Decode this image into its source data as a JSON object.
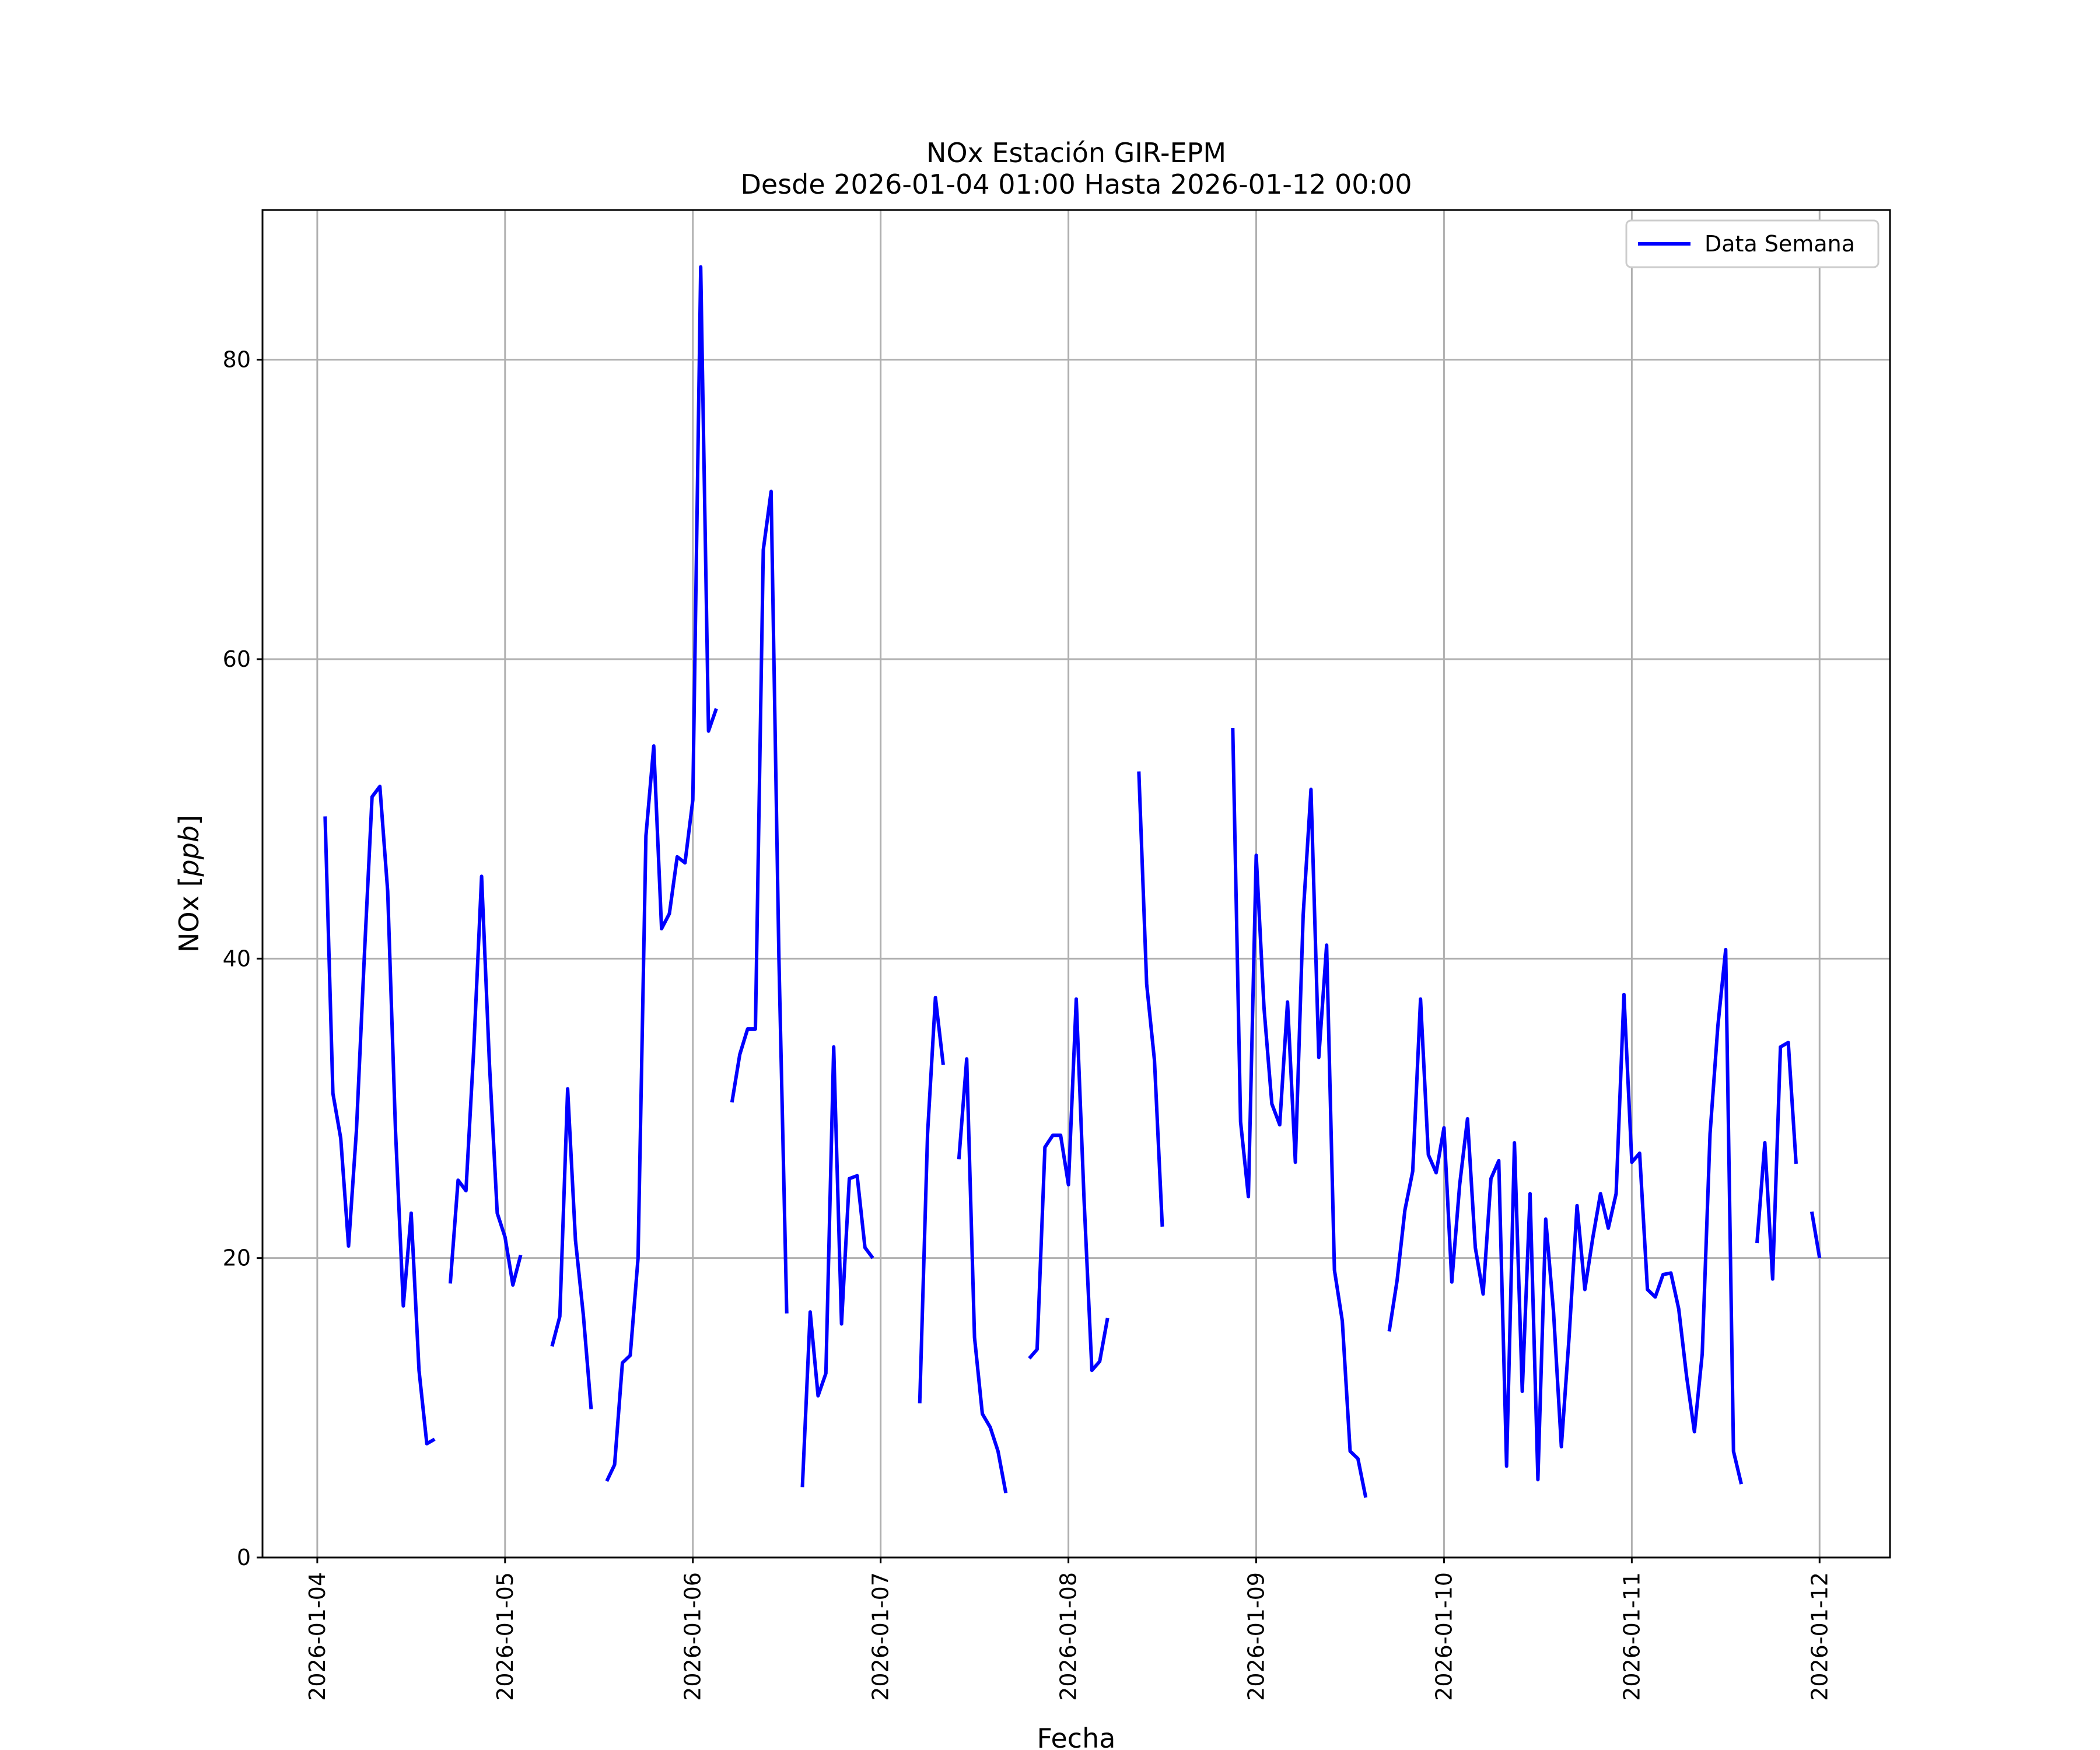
{
  "chart_data": {
    "type": "line",
    "title": "NOx Estación GIR-EPM",
    "subtitle": "Desde 2026-01-04 01:00 Hasta 2026-01-12 00:00",
    "xlabel": "Fecha",
    "ylabel": "NOx [ppb]",
    "xlim": [
      "2026-01-03 17:00",
      "2026-01-12 09:00"
    ],
    "ylim": [
      0,
      90
    ],
    "x_ticks": [
      "2026-01-04",
      "2026-01-05",
      "2026-01-06",
      "2026-01-07",
      "2026-01-08",
      "2026-01-09",
      "2026-01-10",
      "2026-01-11",
      "2026-01-12"
    ],
    "y_ticks": [
      0,
      20,
      40,
      60,
      80
    ],
    "grid": true,
    "legend": {
      "position": "top-right",
      "entries": [
        "Data Semana"
      ]
    },
    "colors": {
      "series": "#0000ff",
      "grid": "#b0b0b0"
    },
    "series": [
      {
        "name": "Data Semana",
        "segments": [
          [
            [
              "2026-01-04 01:00",
              49.5
            ],
            [
              "2026-01-04 02:00",
              31
            ],
            [
              "2026-01-04 03:00",
              28
            ],
            [
              "2026-01-04 04:00",
              20.8
            ],
            [
              "2026-01-04 05:00",
              28.5
            ],
            [
              "2026-01-04 06:00",
              40
            ],
            [
              "2026-01-04 07:00",
              50.8
            ],
            [
              "2026-01-04 08:00",
              51.5
            ],
            [
              "2026-01-04 09:00",
              44.5
            ],
            [
              "2026-01-04 10:00",
              28.5
            ],
            [
              "2026-01-04 11:00",
              16.8
            ],
            [
              "2026-01-04 12:00",
              23
            ],
            [
              "2026-01-04 13:00",
              12.5
            ],
            [
              "2026-01-04 14:00",
              7.6
            ],
            [
              "2026-01-04 15:00",
              7.9
            ]
          ],
          [
            [
              "2026-01-04 17:00",
              18.3
            ],
            [
              "2026-01-04 18:00",
              25.2
            ],
            [
              "2026-01-04 19:00",
              24.5
            ],
            [
              "2026-01-04 20:00",
              34
            ],
            [
              "2026-01-04 21:00",
              45.5
            ],
            [
              "2026-01-04 22:00",
              33
            ],
            [
              "2026-01-04 23:00",
              23
            ],
            [
              "2026-01-05 00:00",
              21.4
            ],
            [
              "2026-01-05 01:00",
              18.2
            ],
            [
              "2026-01-05 02:00",
              20.2
            ]
          ],
          [
            [
              "2026-01-05 06:00",
              14.1
            ],
            [
              "2026-01-05 07:00",
              16.1
            ],
            [
              "2026-01-05 08:00",
              31.3
            ],
            [
              "2026-01-05 09:00",
              21.2
            ],
            [
              "2026-01-05 10:00",
              16.2
            ],
            [
              "2026-01-05 11:00",
              9.9
            ]
          ],
          [
            [
              "2026-01-05 13:00",
              5.1
            ],
            [
              "2026-01-05 14:00",
              6.2
            ],
            [
              "2026-01-05 15:00",
              13
            ],
            [
              "2026-01-05 16:00",
              13.5
            ],
            [
              "2026-01-05 17:00",
              20
            ],
            [
              "2026-01-05 18:00",
              48.2
            ],
            [
              "2026-01-05 19:00",
              54.2
            ],
            [
              "2026-01-05 20:00",
              42
            ],
            [
              "2026-01-05 21:00",
              43
            ],
            [
              "2026-01-05 22:00",
              46.8
            ],
            [
              "2026-01-05 23:00",
              46.4
            ],
            [
              "2026-01-06 00:00",
              50.6
            ],
            [
              "2026-01-06 01:00",
              86.2
            ],
            [
              "2026-01-06 02:00",
              55.2
            ],
            [
              "2026-01-06 03:00",
              56.7
            ]
          ],
          [
            [
              "2026-01-06 05:00",
              30.4
            ],
            [
              "2026-01-06 06:00",
              33.6
            ],
            [
              "2026-01-06 07:00",
              35.3
            ],
            [
              "2026-01-06 08:00",
              35.3
            ],
            [
              "2026-01-06 09:00",
              67.3
            ],
            [
              "2026-01-06 10:00",
              71.2
            ],
            [
              "2026-01-06 11:00",
              40
            ],
            [
              "2026-01-06 12:00",
              16.3
            ]
          ],
          [
            [
              "2026-01-06 14:00",
              4.7
            ],
            [
              "2026-01-06 15:00",
              16.4
            ],
            [
              "2026-01-06 16:00",
              10.8
            ],
            [
              "2026-01-06 17:00",
              12.3
            ],
            [
              "2026-01-06 18:00",
              34.1
            ],
            [
              "2026-01-06 19:00",
              15.6
            ],
            [
              "2026-01-06 20:00",
              25.3
            ],
            [
              "2026-01-06 21:00",
              25.5
            ],
            [
              "2026-01-06 22:00",
              20.7
            ],
            [
              "2026-01-06 23:00",
              20
            ]
          ],
          [
            [
              "2026-01-07 05:00",
              10.3
            ],
            [
              "2026-01-07 06:00",
              28.3
            ],
            [
              "2026-01-07 07:00",
              37.4
            ],
            [
              "2026-01-07 08:00",
              32.9
            ]
          ],
          [
            [
              "2026-01-07 10:00",
              26.6
            ],
            [
              "2026-01-07 11:00",
              33.3
            ],
            [
              "2026-01-07 12:00",
              14.7
            ],
            [
              "2026-01-07 13:00",
              9.6
            ],
            [
              "2026-01-07 14:00",
              8.7
            ],
            [
              "2026-01-07 15:00",
              7.1
            ],
            [
              "2026-01-07 16:00",
              4.3
            ]
          ],
          [
            [
              "2026-01-07 19:00",
              13.3
            ],
            [
              "2026-01-07 20:00",
              13.9
            ],
            [
              "2026-01-07 21:00",
              27.4
            ],
            [
              "2026-01-07 22:00",
              28.2
            ],
            [
              "2026-01-07 23:00",
              28.2
            ],
            [
              "2026-01-08 00:00",
              24.9
            ],
            [
              "2026-01-08 01:00",
              37.3
            ],
            [
              "2026-01-08 02:00",
              23.9
            ],
            [
              "2026-01-08 03:00",
              12.5
            ],
            [
              "2026-01-08 04:00",
              13.1
            ],
            [
              "2026-01-08 05:00",
              16
            ]
          ],
          [
            [
              "2026-01-08 09:00",
              52.5
            ],
            [
              "2026-01-08 10:00",
              38.3
            ],
            [
              "2026-01-08 11:00",
              33.2
            ],
            [
              "2026-01-08 12:00",
              22.1
            ]
          ],
          [
            [
              "2026-01-08 21:00",
              55.4
            ],
            [
              "2026-01-08 22:00",
              29.1
            ],
            [
              "2026-01-08 23:00",
              24.1
            ],
            [
              "2026-01-09 00:00",
              46.9
            ],
            [
              "2026-01-09 01:00",
              36.7
            ],
            [
              "2026-01-09 02:00",
              30.3
            ],
            [
              "2026-01-09 03:00",
              28.9
            ],
            [
              "2026-01-09 04:00",
              37.1
            ],
            [
              "2026-01-09 05:00",
              26.4
            ],
            [
              "2026-01-09 06:00",
              42.9
            ],
            [
              "2026-01-09 07:00",
              51.3
            ],
            [
              "2026-01-09 08:00",
              33.4
            ],
            [
              "2026-01-09 09:00",
              40.9
            ],
            [
              "2026-01-09 10:00",
              19.2
            ],
            [
              "2026-01-09 11:00",
              15.8
            ],
            [
              "2026-01-09 12:00",
              7.1
            ],
            [
              "2026-01-09 13:00",
              6.6
            ],
            [
              "2026-01-09 14:00",
              4
            ]
          ],
          [
            [
              "2026-01-09 17:00",
              15.1
            ],
            [
              "2026-01-09 18:00",
              18.5
            ],
            [
              "2026-01-09 19:00",
              23.2
            ],
            [
              "2026-01-09 20:00",
              25.8
            ],
            [
              "2026-01-09 21:00",
              37.3
            ],
            [
              "2026-01-09 22:00",
              26.9
            ],
            [
              "2026-01-09 23:00",
              25.7
            ],
            [
              "2026-01-10 00:00",
              28.7
            ],
            [
              "2026-01-10 01:00",
              18.4
            ],
            [
              "2026-01-10 02:00",
              24.9
            ],
            [
              "2026-01-10 03:00",
              29.3
            ],
            [
              "2026-01-10 04:00",
              20.7
            ],
            [
              "2026-01-10 05:00",
              17.6
            ],
            [
              "2026-01-10 06:00",
              25.3
            ],
            [
              "2026-01-10 07:00",
              26.5
            ],
            [
              "2026-01-10 08:00",
              6.1
            ],
            [
              "2026-01-10 09:00",
              27.7
            ],
            [
              "2026-01-10 10:00",
              11.1
            ],
            [
              "2026-01-10 11:00",
              24.3
            ],
            [
              "2026-01-10 12:00",
              5.2
            ],
            [
              "2026-01-10 13:00",
              22.6
            ],
            [
              "2026-01-10 14:00",
              16.4
            ],
            [
              "2026-01-10 15:00",
              7.4
            ],
            [
              "2026-01-10 16:00",
              14.8
            ],
            [
              "2026-01-10 17:00",
              23.5
            ],
            [
              "2026-01-10 18:00",
              17.9
            ],
            [
              "2026-01-10 19:00",
              21.3
            ],
            [
              "2026-01-10 20:00",
              24.3
            ],
            [
              "2026-01-10 21:00",
              22
            ],
            [
              "2026-01-10 22:00",
              24.3
            ],
            [
              "2026-01-10 23:00",
              37.6
            ],
            [
              "2026-01-11 00:00",
              26.4
            ],
            [
              "2026-01-11 01:00",
              27
            ],
            [
              "2026-01-11 02:00",
              17.9
            ],
            [
              "2026-01-11 03:00",
              17.4
            ],
            [
              "2026-01-11 04:00",
              18.9
            ],
            [
              "2026-01-11 05:00",
              19
            ],
            [
              "2026-01-11 06:00",
              16.6
            ],
            [
              "2026-01-11 07:00",
              12.1
            ],
            [
              "2026-01-11 08:00",
              8.4
            ],
            [
              "2026-01-11 09:00",
              13.6
            ],
            [
              "2026-01-11 10:00",
              28.3
            ],
            [
              "2026-01-11 11:00",
              35.5
            ],
            [
              "2026-01-11 12:00",
              40.6
            ],
            [
              "2026-01-11 13:00",
              7.1
            ],
            [
              "2026-01-11 14:00",
              4.9
            ]
          ],
          [
            [
              "2026-01-11 16:00",
              21
            ],
            [
              "2026-01-11 17:00",
              27.7
            ],
            [
              "2026-01-11 18:00",
              18.6
            ],
            [
              "2026-01-11 19:00",
              34.1
            ],
            [
              "2026-01-11 20:00",
              34.4
            ],
            [
              "2026-01-11 21:00",
              26.3
            ]
          ],
          [
            [
              "2026-01-11 23:00",
              23.1
            ],
            [
              "2026-01-12 00:00",
              20
            ]
          ]
        ]
      }
    ]
  }
}
